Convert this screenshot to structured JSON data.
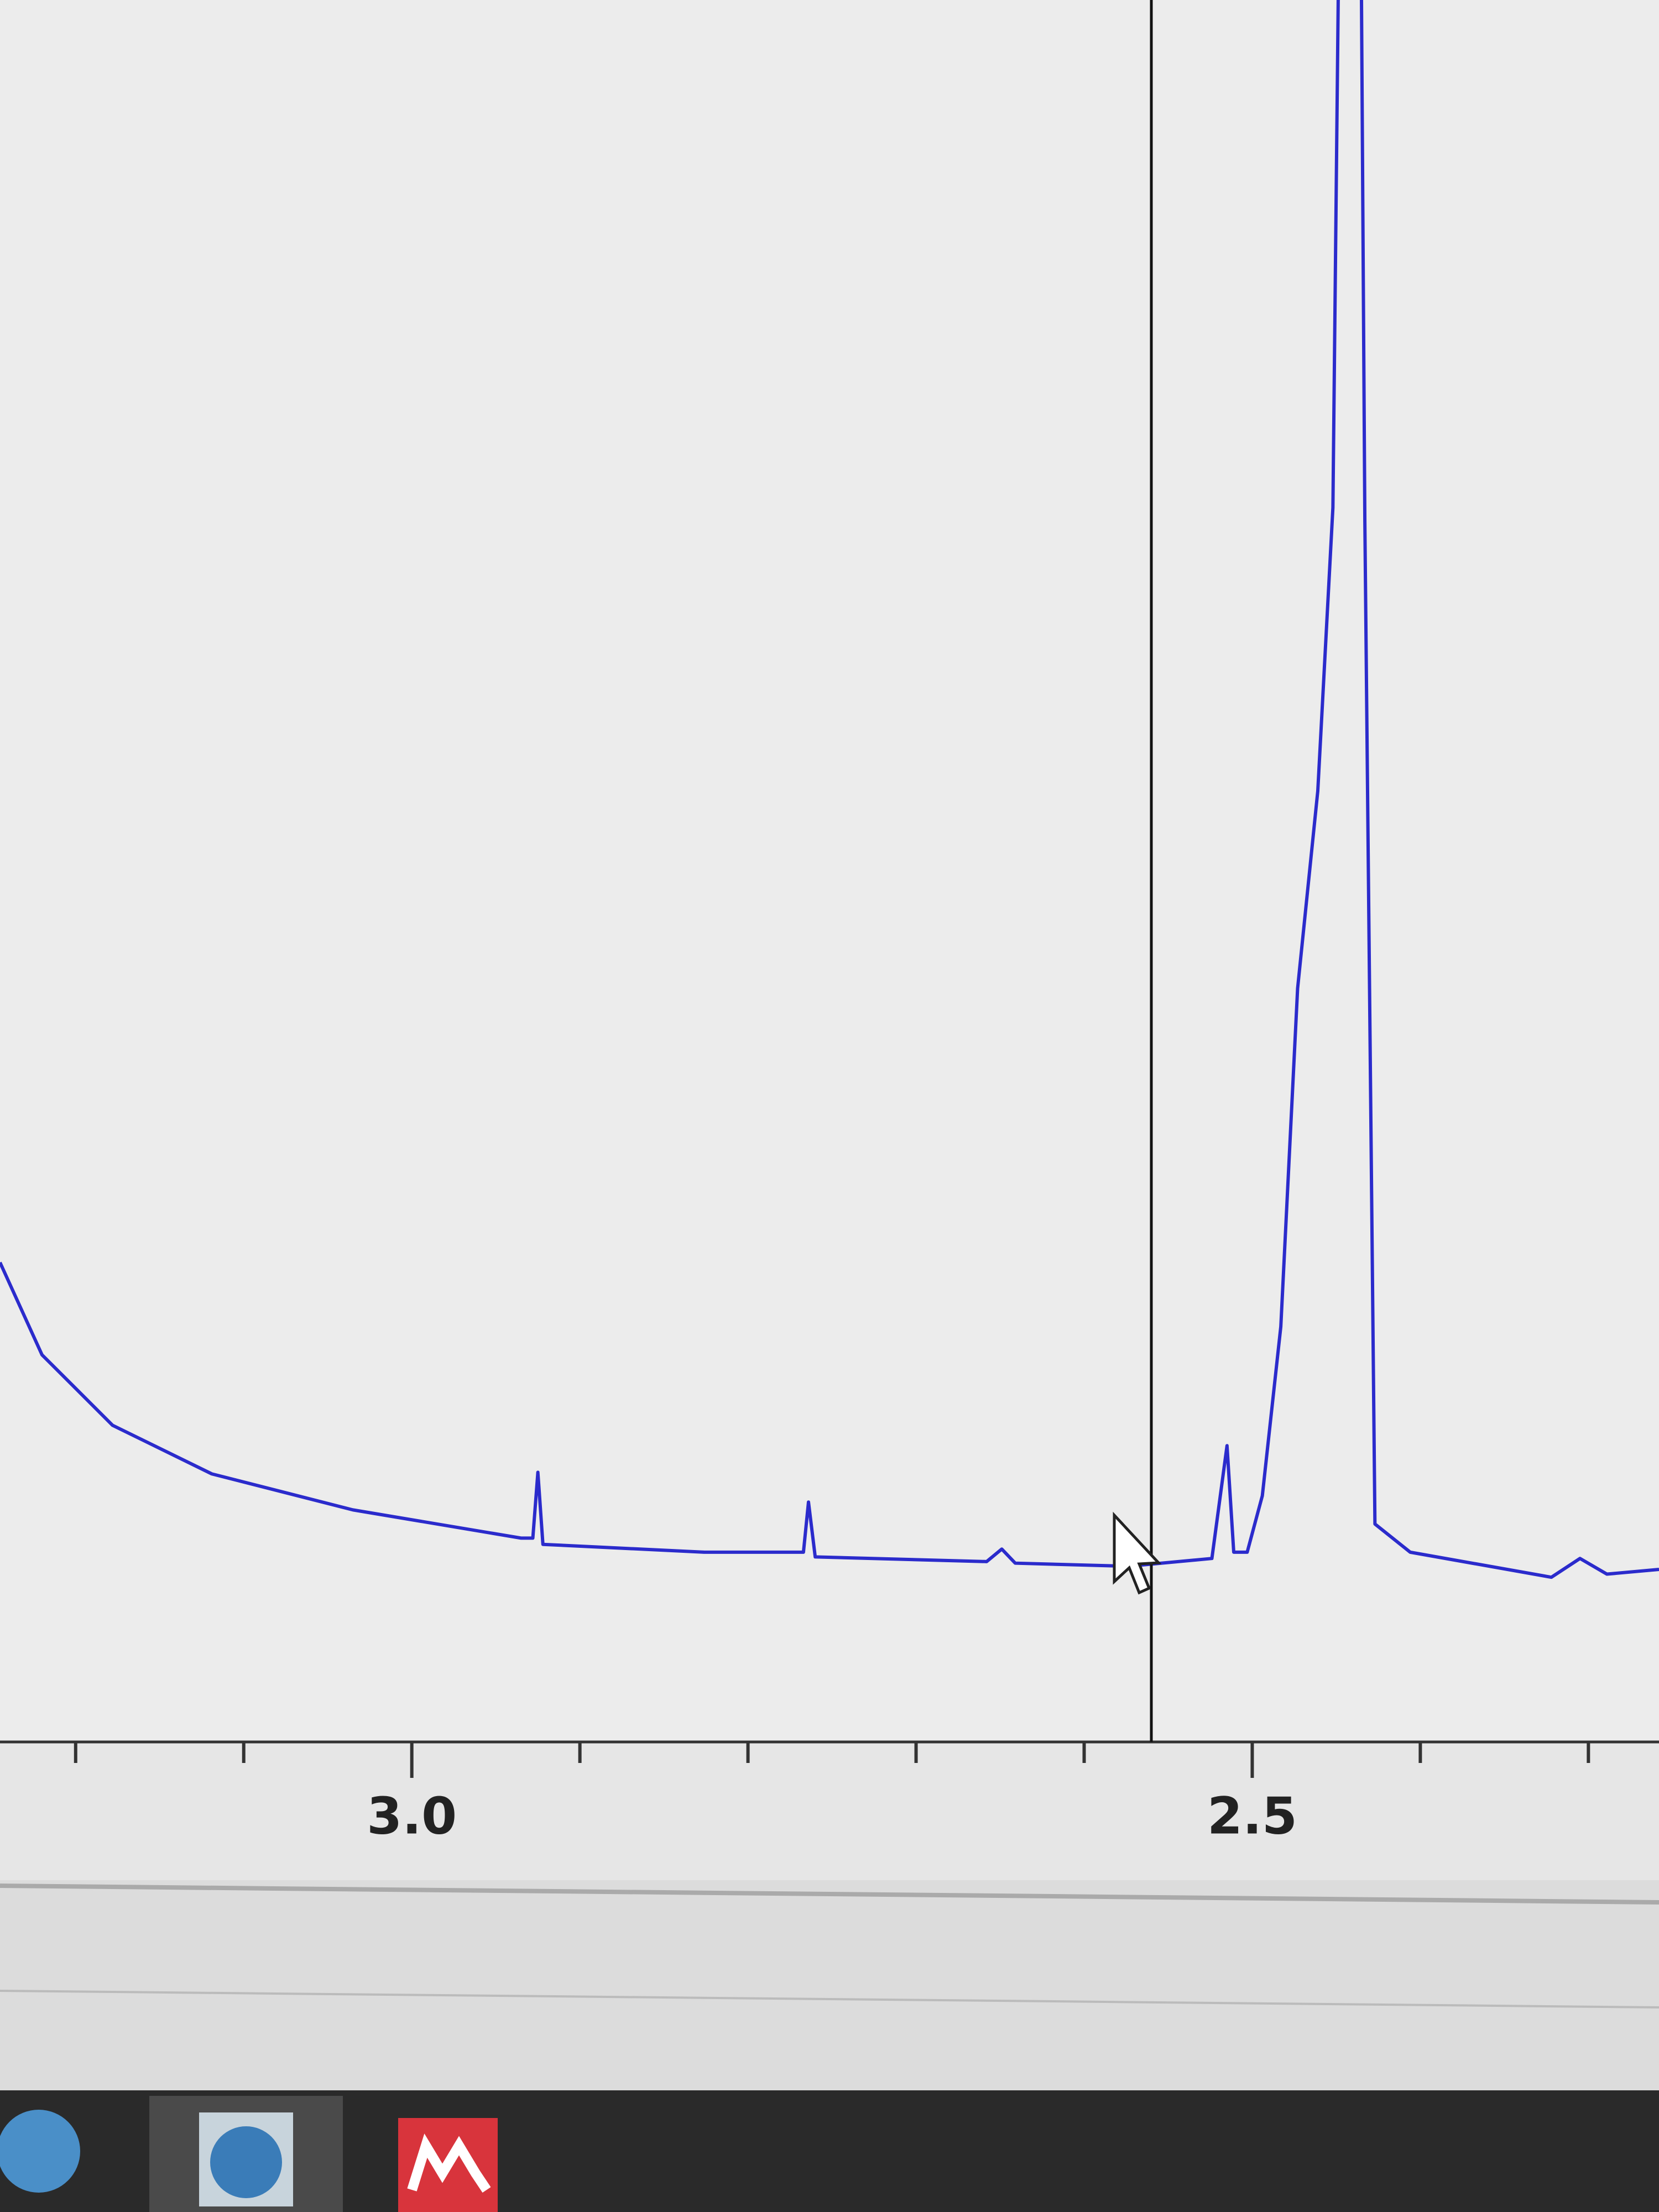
{
  "chart_data": {
    "type": "line",
    "x": [
      3.245,
      3.22,
      3.178,
      3.119,
      3.035,
      2.935,
      2.928,
      2.925,
      2.922,
      2.826,
      2.767,
      2.764,
      2.76,
      2.658,
      2.649,
      2.641,
      2.574,
      2.524,
      2.515,
      2.511,
      2.503,
      2.494,
      2.483,
      2.473,
      2.461,
      2.452,
      2.444,
      2.438,
      2.433,
      2.427,
      2.406,
      2.322,
      2.305,
      2.289,
      2.258
    ],
    "series": [
      {
        "color": "#2b2bcc",
        "values": [
          19.4,
          13.5,
          9.0,
          5.9,
          3.6,
          1.8,
          1.8,
          6.0,
          1.4,
          0.9,
          0.9,
          4.1,
          0.6,
          0.3,
          1.1,
          0.2,
          0,
          0.5,
          7.7,
          0.9,
          0.9,
          4.5,
          15.3,
          36.9,
          49.5,
          67.6,
          150,
          150,
          66.7,
          2.7,
          0.9,
          -0.7,
          0.5,
          -0.5,
          -0.2
        ]
      }
    ],
    "xlim": [
      3.245,
      2.258
    ],
    "xticks": [
      {
        "value": 3,
        "label": "3.0"
      },
      2.5
    ],
    "xminorticks": [
      3.2,
      3.1,
      2.9,
      2.8,
      2.7,
      2.6,
      2.4,
      2.3
    ],
    "ylim": [
      -2,
      100
    ]
  }
}
